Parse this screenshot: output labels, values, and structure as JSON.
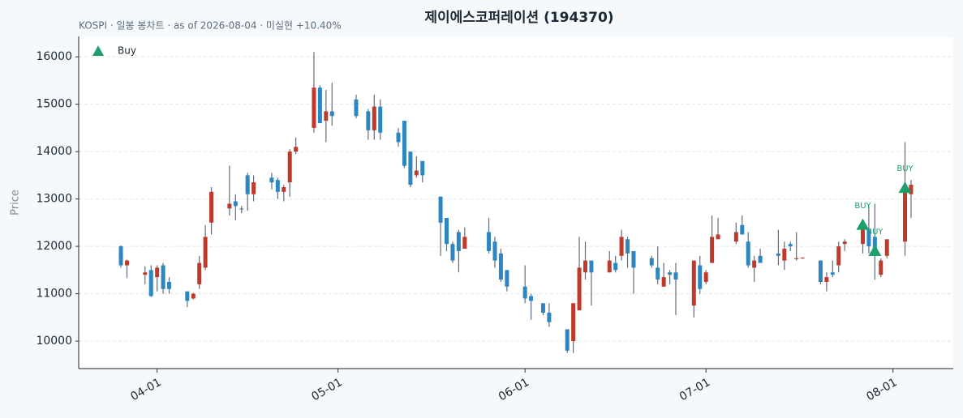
{
  "chart_data": {
    "type": "candlestick",
    "title": "제이에스코퍼레이션 (194370)",
    "subtitle": "KOSPI · 일봉 봉차트 · as of 2026-08-04 · 미실현 +10.40%",
    "ylabel": "Price",
    "x": [
      "03-26",
      "03-27",
      "03-30",
      "03-31",
      "04-01",
      "04-02",
      "04-03",
      "04-06",
      "04-07",
      "04-08",
      "04-09",
      "04-10",
      "04-13",
      "04-14",
      "04-15",
      "04-16",
      "04-17",
      "04-20",
      "04-21",
      "04-22",
      "04-23",
      "04-24",
      "04-27",
      "04-28",
      "04-29",
      "04-30",
      "05-04",
      "05-06",
      "05-07",
      "05-08",
      "05-11",
      "05-12",
      "05-13",
      "05-14",
      "05-15",
      "05-18",
      "05-19",
      "05-20",
      "05-21",
      "05-22",
      "05-26",
      "05-27",
      "05-28",
      "05-29",
      "06-01",
      "06-02",
      "06-04",
      "06-05",
      "06-08",
      "06-09",
      "06-10",
      "06-11",
      "06-12",
      "06-15",
      "06-16",
      "06-17",
      "06-18",
      "06-19",
      "06-22",
      "06-23",
      "06-24",
      "06-25",
      "06-26",
      "06-29",
      "06-30",
      "07-01",
      "07-02",
      "07-03",
      "07-06",
      "07-07",
      "07-08",
      "07-09",
      "07-10",
      "07-13",
      "07-14",
      "07-15",
      "07-16",
      "07-17",
      "07-20",
      "07-21",
      "07-22",
      "07-23",
      "07-24",
      "07-27",
      "07-28",
      "07-29",
      "07-30",
      "07-31",
      "08-03",
      "08-04"
    ],
    "open": [
      12000,
      11600,
      11400,
      11500,
      11350,
      11600,
      11250,
      11050,
      10900,
      11200,
      11550,
      12500,
      12800,
      12950,
      12800,
      13500,
      13100,
      13450,
      13400,
      13150,
      13350,
      14000,
      14500,
      15350,
      14650,
      14850,
      15100,
      14850,
      14450,
      14950,
      14400,
      14650,
      14000,
      13500,
      13800,
      13050,
      12600,
      12050,
      12300,
      11950,
      12300,
      12100,
      11850,
      11500,
      11150,
      10950,
      10800,
      10600,
      10250,
      10000,
      10650,
      11450,
      11700,
      11450,
      11650,
      11800,
      12150,
      11900,
      11750,
      11550,
      11150,
      11450,
      11450,
      10750,
      11600,
      11250,
      11650,
      12150,
      12100,
      12450,
      12100,
      11550,
      11800,
      11850,
      11700,
      12050,
      11730,
      11750,
      11700,
      11250,
      11450,
      11600,
      12050,
      12050,
      12350,
      12200,
      11400,
      11800,
      12100,
      13100
    ],
    "high": [
      12020,
      11720,
      11580,
      11600,
      11600,
      11650,
      11350,
      11050,
      11020,
      11800,
      12450,
      13250,
      13700,
      13100,
      12850,
      13550,
      13500,
      13550,
      13450,
      13300,
      14050,
      14300,
      16100,
      15400,
      15300,
      15450,
      15200,
      14900,
      15200,
      15100,
      14500,
      14650,
      14000,
      13900,
      13800,
      13050,
      12600,
      12100,
      12350,
      12400,
      12600,
      12200,
      11950,
      11500,
      11600,
      11000,
      10800,
      10800,
      10250,
      10800,
      12200,
      12100,
      11700,
      11900,
      11800,
      12350,
      12200,
      11900,
      11800,
      12000,
      11650,
      11500,
      11650,
      11700,
      11800,
      11500,
      12650,
      12600,
      12500,
      12650,
      12300,
      11800,
      11950,
      12350,
      12100,
      12100,
      12300,
      11770,
      11700,
      11450,
      11700,
      12100,
      12150,
      12550,
      12850,
      12900,
      11750,
      12150,
      14200,
      13400
    ],
    "low": [
      11550,
      11330,
      11200,
      10930,
      11050,
      11000,
      11000,
      10720,
      10880,
      11100,
      11500,
      12250,
      12650,
      12550,
      12700,
      12750,
      12950,
      13200,
      13000,
      12950,
      13050,
      13950,
      14400,
      14600,
      14200,
      14550,
      14700,
      14250,
      14250,
      14250,
      14100,
      13650,
      13250,
      13450,
      13350,
      11800,
      11900,
      11650,
      11450,
      11950,
      11850,
      11550,
      11250,
      11050,
      10800,
      10450,
      10550,
      10300,
      9750,
      9750,
      10650,
      11300,
      10750,
      11450,
      11450,
      11700,
      11550,
      11000,
      11550,
      11200,
      11150,
      11200,
      10550,
      10500,
      11000,
      11200,
      11650,
      12150,
      12050,
      12250,
      11550,
      11250,
      11650,
      11600,
      11500,
      11900,
      11700,
      11740,
      11200,
      11050,
      11350,
      11450,
      11900,
      11850,
      11850,
      11300,
      11350,
      11750,
      11800,
      12600
    ],
    "close": [
      11600,
      11700,
      11450,
      10950,
      11550,
      11100,
      11100,
      10850,
      11000,
      11650,
      12200,
      13150,
      12900,
      12850,
      12780,
      13100,
      13350,
      13350,
      13150,
      13250,
      14000,
      14100,
      15350,
      14600,
      14850,
      14750,
      14750,
      14450,
      14950,
      14400,
      14200,
      13700,
      13300,
      13600,
      13500,
      12500,
      12050,
      11700,
      11900,
      12200,
      11900,
      11700,
      11300,
      11150,
      10900,
      10850,
      10600,
      10400,
      9800,
      10800,
      11550,
      11700,
      11450,
      11700,
      11500,
      12200,
      11850,
      11550,
      11600,
      11300,
      11350,
      11400,
      11300,
      11700,
      11100,
      11450,
      12200,
      12250,
      12300,
      12250,
      11600,
      11700,
      11650,
      11800,
      11950,
      12000,
      11750,
      11760,
      11250,
      11350,
      11400,
      12000,
      12100,
      12350,
      12000,
      11950,
      11700,
      12150,
      13250,
      13300
    ],
    "up_color": "#c0392b",
    "down_color": "#2e86c1",
    "wick_color": "#5d6d7e",
    "markers": {
      "name": "Buy",
      "label": "BUY",
      "color": "#1e9e6a",
      "x": [
        "07-27",
        "07-29",
        "08-03"
      ],
      "values": [
        12450,
        11900,
        13230
      ]
    },
    "xlim": [
      "03-19",
      "08-11"
    ],
    "xticks": [
      "04-01",
      "05-01",
      "06-01",
      "07-01",
      "08-01"
    ],
    "ylim": [
      9420,
      16430
    ],
    "yticks": [
      10000,
      11000,
      12000,
      13000,
      14000,
      15000,
      16000
    ],
    "grid": true,
    "legend": "upper left"
  }
}
